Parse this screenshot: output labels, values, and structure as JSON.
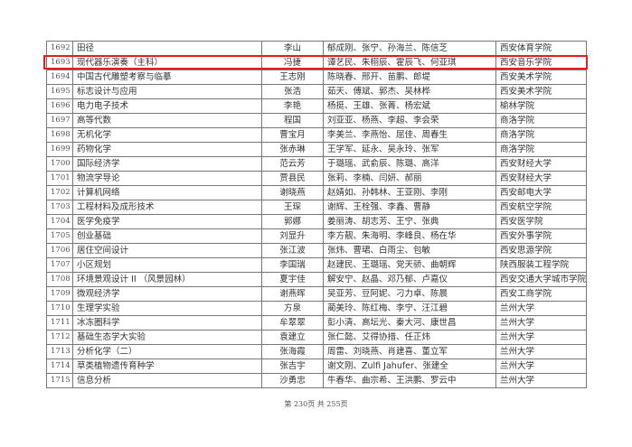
{
  "table": {
    "rows": [
      {
        "no": "1692",
        "course": "田径",
        "leader": "李山",
        "members": "郁成刚、张宁、孙海兰、陈信芝",
        "school": "西安体育学院"
      },
      {
        "no": "1693",
        "course": "现代器乐演奏（主科）",
        "leader": "冯捷",
        "members": "谭艺民、朱栩辰、霍辰飞、何亚琪",
        "school": "西安音乐学院"
      },
      {
        "no": "1694",
        "course": "中国古代雕塑考察与临摹",
        "leader": "王志刚",
        "members": "陈晓春、邢开、苗鹏、郎堤",
        "school": "西安美术学院"
      },
      {
        "no": "1695",
        "course": "标志设计与应用",
        "leader": "张浩",
        "members": "茹天、傅斌、郭杰、吴林桦",
        "school": "西安美术学院"
      },
      {
        "no": "1696",
        "course": "电力电子技术",
        "leader": "李艳",
        "members": "杨挺、王雄、张菁、杨宏斌",
        "school": "榆林学院"
      },
      {
        "no": "1697",
        "course": "高等代数",
        "leader": "程国",
        "members": "刘亚亚、杨燕、李超、李会荣",
        "school": "商洛学院"
      },
      {
        "no": "1698",
        "course": "无机化学",
        "leader": "曹宝月",
        "members": "李美兰、李燕怡、屈佳、周春生",
        "school": "商洛学院"
      },
      {
        "no": "1699",
        "course": "药物化学",
        "leader": "张赤琳",
        "members": "王学军、延永、吴永玲、张军",
        "school": "商洛学院"
      },
      {
        "no": "1700",
        "course": "国际经济学",
        "leader": "范云芳",
        "members": "于璐瑶、武俞辰、陈璐、高洋",
        "school": "西安财经大学"
      },
      {
        "no": "1701",
        "course": "物流学导论",
        "leader": "贾县民",
        "members": "张莉、李楠、闫妍、郝丽",
        "school": "西安财经大学"
      },
      {
        "no": "1702",
        "course": "计算机网络",
        "leader": "谢晓燕",
        "members": "赵婧如、孙韩林、王亚刚、李刚",
        "school": "西安邮电大学"
      },
      {
        "no": "1703",
        "course": "工程材料及成形技术",
        "leader": "王琛",
        "members": "谢辉、王栓强、李鑫、曹静",
        "school": "西安航空学院"
      },
      {
        "no": "1704",
        "course": "医学免疫学",
        "leader": "郭娜",
        "members": "姜丽涛、胡志芳、王宁、张典",
        "school": "西安医学院"
      },
      {
        "no": "1705",
        "course": "创业基础",
        "leader": "刘显升",
        "members": "李方靓、朱海明、李峰良、杨在华",
        "school": "西安外事学院"
      },
      {
        "no": "1706",
        "course": "居住空间设计",
        "leader": "张江波",
        "members": "张炜、曹珺、白雨尘、包敏",
        "school": "西安思源学院"
      },
      {
        "no": "1707",
        "course": "小区规划",
        "leader": "李国瑞",
        "members": "赵建民、王璐瑶、党天骄、曲朝辉",
        "school": "陕西服装工程学院"
      },
      {
        "no": "1708",
        "course": "环境景观设计 II （风景园林）",
        "leader": "夏宇佳",
        "members": "解安宁、赵晶、邓乃郁、卢嘉仪",
        "school": "西安交通大学城市学院"
      },
      {
        "no": "1709",
        "course": "微观经济学",
        "leader": "谢燕晖",
        "members": "吴亚芳、豆阿妮、刁力卓、陈晨",
        "school": "西安工商学院"
      },
      {
        "no": "1710",
        "course": "生理学实验",
        "leader": "方泉",
        "members": "蔺美玲、陈红梅、李宁、汪江碧",
        "school": "兰州大学"
      },
      {
        "no": "1711",
        "course": "冰冻圈科学",
        "leader": "牟翠翠",
        "members": "彭小清、高坛光、秦大河、康世昌",
        "school": "兰州大学"
      },
      {
        "no": "1712",
        "course": "基础生态学大实验",
        "leader": "袁建立",
        "members": "张仁懿、艾得协措、任正炜",
        "school": "兰州大学"
      },
      {
        "no": "1713",
        "course": "分析化学（二）",
        "leader": "张海霞",
        "members": "周雷、刘晓燕、肖建喜、董立军",
        "school": "兰州大学"
      },
      {
        "no": "1714",
        "course": "草类植物遗传育种学",
        "leader": "张吉宇",
        "members": "谢文刚、Zulfi Jahufer、张建全",
        "school": "兰州大学"
      },
      {
        "no": "1715",
        "course": "信息分析",
        "leader": "沙勇忠",
        "members": "牛春华、曲宗希、王洪鹏、罗云中",
        "school": "兰州大学"
      }
    ],
    "highlighted_row": "1693",
    "highlight_color": "#e0201c"
  },
  "footer": {
    "page": "第 230页  共 255页"
  }
}
